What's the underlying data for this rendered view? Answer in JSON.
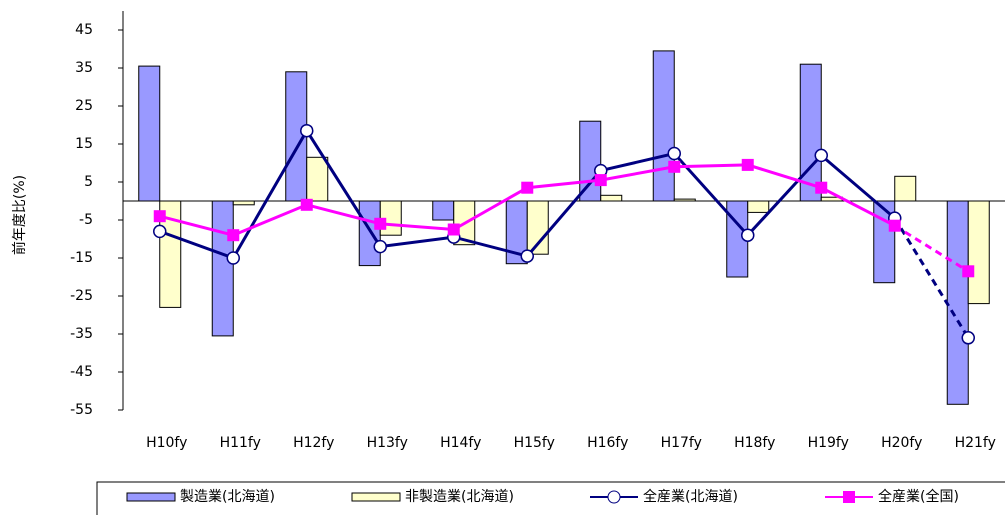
{
  "chart_data": {
    "type": "bar",
    "y_label": "前年度比(%)",
    "categories": [
      "H10fy",
      "H11fy",
      "H12fy",
      "H13fy",
      "H14fy",
      "H15fy",
      "H16fy",
      "H17fy",
      "H18fy",
      "H19fy",
      "H20fy",
      "H21fy"
    ],
    "series": [
      {
        "name": "製造業(北海道)",
        "type": "bar",
        "color": "#9999ff",
        "values": [
          35.5,
          -35.5,
          34,
          -17,
          -5,
          -16.5,
          21,
          39.5,
          -20,
          36,
          -21.5,
          -53.5
        ]
      },
      {
        "name": "非製造業(北海道)",
        "type": "bar",
        "color": "#ffffcc",
        "values": [
          -28,
          -1,
          11.5,
          -9,
          -11.5,
          -14,
          1.5,
          0.5,
          -3,
          1,
          6.5,
          -27
        ]
      },
      {
        "name": "全産業(北海道)",
        "type": "line",
        "color": "#000080",
        "marker": "circle",
        "values": [
          -8,
          -15,
          18.5,
          -12,
          -9.5,
          -14.5,
          8,
          12.5,
          -9,
          12,
          -4.5,
          -36
        ]
      },
      {
        "name": "全産業(全国)",
        "type": "line",
        "color": "#ff00ff",
        "marker": "square",
        "values": [
          -4,
          -9,
          -1,
          -6,
          -7.5,
          3.5,
          5.5,
          9,
          9.5,
          3.5,
          -6.5,
          -18.5
        ]
      }
    ],
    "dashed_from": 10,
    "ylim": [
      -55,
      50
    ],
    "yticks": [
      -55,
      -45,
      -35,
      -25,
      -15,
      -5,
      5,
      15,
      25,
      35,
      45
    ],
    "legend": "bottom"
  }
}
